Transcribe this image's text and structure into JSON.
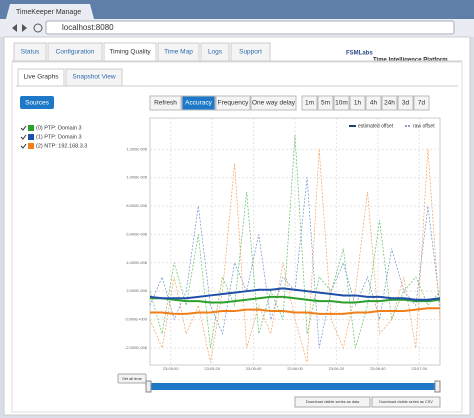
{
  "browser": {
    "tab_title": "TimeKeeper Manage",
    "url": "localhost:8080"
  },
  "nav": {
    "tabs": [
      "Status",
      "Configuration",
      "Timing Quality",
      "Time Map",
      "Logs",
      "Support"
    ],
    "active": 2
  },
  "brand": {
    "logo": "FSMLabs",
    "tagline": "Time Intelligence Platform"
  },
  "subtabs": {
    "tabs": [
      "Live Graphs",
      "Snapshot View"
    ],
    "active": 0
  },
  "sources_button": "Sources",
  "sources": [
    {
      "label": "(0) PTP: Domain 3",
      "color": "#2ca02c"
    },
    {
      "label": "(1) PTP: Domain 3",
      "color": "#1f4fa8"
    },
    {
      "label": "(2) NTP: 192.168.3.3",
      "color": "#f07f1a"
    }
  ],
  "toolbar": {
    "buttons": [
      "Refresh",
      "Accuracy",
      "Frequency",
      "One way delay"
    ],
    "active": 1,
    "ranges": [
      "1m",
      "5m",
      "10m",
      "1h",
      "4h",
      "24h",
      "3d",
      "7d"
    ]
  },
  "chart_data": {
    "type": "line",
    "ylim": [
      -3.2e-06,
      1.42e-05
    ],
    "yticks": [
      {
        "value": -2e-06,
        "label": "-2.000E-006"
      },
      {
        "value": 0,
        "label": "0.000E+000"
      },
      {
        "value": 2e-06,
        "label": "2.000E-006"
      },
      {
        "value": 4e-06,
        "label": "4.000E-006"
      },
      {
        "value": 6e-06,
        "label": "6.000E-006"
      },
      {
        "value": 8e-06,
        "label": "8.000E-006"
      },
      {
        "value": 1e-05,
        "label": "1.000E-005"
      },
      {
        "value": 1.2e-05,
        "label": "1.200E-005"
      }
    ],
    "x_labels": [
      "23:05:00",
      "23:05:20",
      "23:05:40",
      "23:06:00",
      "23:06:20",
      "23:06:40",
      "23:07:00"
    ],
    "grid": true,
    "series": [
      {
        "name": "estimated offset",
        "color": "#2ca02c",
        "values": [
          1.5e-06,
          1.5e-06,
          1.4e-06,
          1.3e-06,
          1.3e-06,
          1.2e-06,
          1.2e-06,
          1.3e-06,
          1.4e-06,
          1.5e-06,
          1.6e-06,
          1.6e-06,
          1.5e-06,
          1.4e-06,
          1.3e-06,
          1.3e-06,
          1.2e-06,
          1.2e-06,
          1.3e-06,
          1.3e-06,
          1.4e-06,
          1.4e-06,
          1.3e-06,
          1.3e-06,
          1.4e-06
        ]
      },
      {
        "name": "estimated offset",
        "color": "#1f4fa8",
        "values": [
          1.6e-06,
          1.5e-06,
          1.5e-06,
          1.5e-06,
          1.6e-06,
          1.7e-06,
          1.8e-06,
          1.9e-06,
          2e-06,
          2.1e-06,
          2.1e-06,
          2.2e-06,
          2.1e-06,
          2e-06,
          1.9e-06,
          1.8e-06,
          1.7e-06,
          1.7e-06,
          1.6e-06,
          1.6e-06,
          1.5e-06,
          1.5e-06,
          1.4e-06,
          1.4e-06,
          1.5e-06
        ]
      },
      {
        "name": "estimated offset",
        "color": "#f07f1a",
        "values": [
          5e-07,
          5e-07,
          4e-07,
          4e-07,
          5e-07,
          5e-07,
          6e-07,
          6e-07,
          7e-07,
          7e-07,
          6e-07,
          6e-07,
          5e-07,
          5e-07,
          4e-07,
          4e-07,
          4e-07,
          5e-07,
          5e-07,
          6e-07,
          6e-07,
          6e-07,
          7e-07,
          8e-07,
          8e-07
        ]
      },
      {
        "name": "raw offset",
        "color": "#5cc05c",
        "values": [
          2e-06,
          -1e-06,
          4e-06,
          1e-06,
          6e-06,
          -2e-06,
          3e-06,
          1e-06,
          9e-06,
          -1e-06,
          2e-06,
          0,
          1.3e-05,
          -1e-06,
          3e-06,
          2e-06,
          5e-06,
          -2e-06,
          1e-06,
          7e-06,
          0,
          2e-06,
          3e-06,
          1e-06,
          2e-06
        ]
      },
      {
        "name": "raw offset",
        "color": "#6f8fd0",
        "values": [
          1e-06,
          3e-06,
          0,
          2e-06,
          8e-06,
          1e-06,
          -1e-06,
          4e-06,
          2e-06,
          6e-06,
          0,
          3e-06,
          2e-06,
          1e-05,
          -2e-06,
          2e-06,
          4e-06,
          1e-06,
          3e-06,
          0,
          5e-06,
          2e-06,
          1e-06,
          8e-06,
          1e-06
        ]
      },
      {
        "name": "raw offset",
        "color": "#f5a05a",
        "values": [
          0,
          -2e-06,
          3e-06,
          -1e-06,
          1e-06,
          -3e-06,
          2e-06,
          1.1e-05,
          -2e-06,
          1e-06,
          -1e-06,
          4e-06,
          0,
          -3e-06,
          1.2e-05,
          0,
          -2e-06,
          2e-06,
          9e-06,
          -1e-06,
          0,
          3e-06,
          -2e-06,
          1.2e-05,
          0
        ]
      }
    ]
  },
  "footer": {
    "set_button": "Set all time",
    "downloads": [
      "Download visible series as data",
      "Download visible series as CSV"
    ]
  }
}
